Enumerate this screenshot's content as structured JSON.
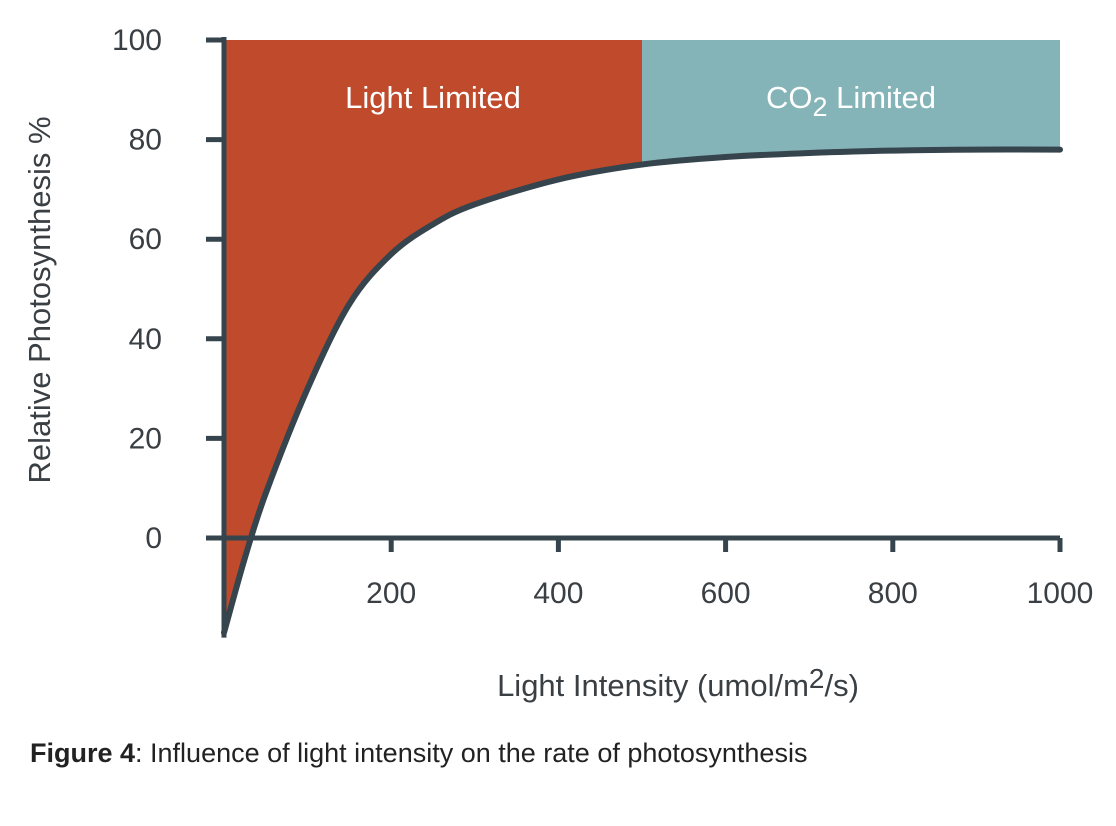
{
  "chart_data": {
    "type": "line",
    "x": [
      0,
      25,
      50,
      100,
      150,
      200,
      250,
      300,
      400,
      500,
      600,
      700,
      800,
      900,
      1000
    ],
    "series": [
      {
        "name": "Relative Photosynthesis",
        "values": [
          -19,
          -4,
          9,
          30,
          47,
          57,
          63,
          67,
          72,
          75,
          76.5,
          77.3,
          77.8,
          78,
          78
        ]
      }
    ],
    "regions": [
      {
        "label_text": "Light Limited",
        "x_range": [
          0,
          500
        ],
        "color": "#bf4b2c"
      },
      {
        "label_main": "CO",
        "label_sub": "2",
        "label_rest": " Limited",
        "x_range": [
          500,
          1000
        ],
        "color": "#84b4b8"
      }
    ],
    "x_ticks": [
      "200",
      "400",
      "600",
      "800",
      "1000"
    ],
    "x_tick_values": [
      200,
      400,
      600,
      800,
      1000
    ],
    "y_ticks": [
      "100",
      "80",
      "60",
      "40",
      "20",
      "0"
    ],
    "y_tick_values": [
      100,
      80,
      60,
      40,
      20,
      0
    ],
    "xlim": [
      0,
      1000
    ],
    "ylim": [
      -20,
      100
    ],
    "ylabel": "Relative Photosynthesis %",
    "xlabel_main": "Light Intensity (umol/m",
    "xlabel_sup": "2",
    "xlabel_end": "/s)",
    "curve_color": "#36444e",
    "axis_color": "#36444e"
  },
  "caption": {
    "label": "Figure 4",
    "text": ": Influence of light intensity on the rate of photosynthesis"
  }
}
